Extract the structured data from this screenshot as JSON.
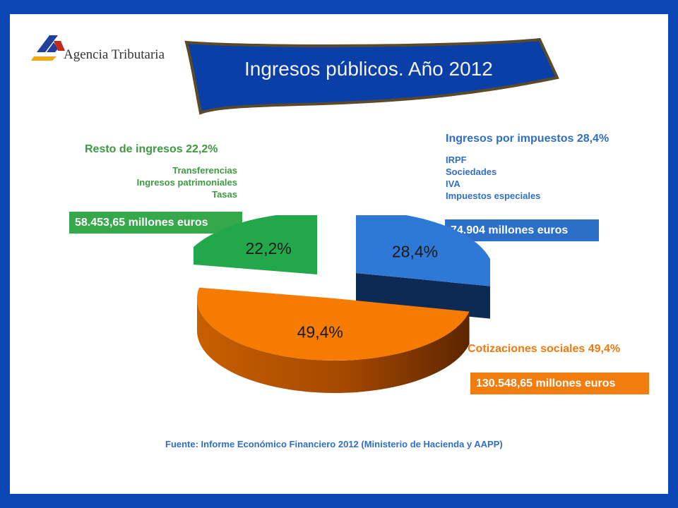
{
  "logo": {
    "text": "Agencia Tributaria"
  },
  "banner": {
    "title": "Ingresos públicos. Año 2012"
  },
  "categories": {
    "resto": {
      "title": "Resto de ingresos 22,2%",
      "items": [
        "Transferencias",
        "Ingresos patrimoniales",
        "Tasas"
      ],
      "amount": "58.453,65 millones euros"
    },
    "impuestos": {
      "title": "Ingresos por impuestos 28,4%",
      "items": [
        "IRPF",
        "Sociedades",
        "IVA",
        "Impuestos especiales"
      ],
      "amount": "74.904 millones euros"
    },
    "cotizaciones": {
      "title": "Cotizaciones sociales 49,4%",
      "amount": "130.548,65 millones euros"
    }
  },
  "source": "Fuente: Informe Económico Financiero 2012 (Ministerio de Hacienda y AAPP)",
  "colors": {
    "impuestos": "#2e78d6",
    "cotizaciones": "#f57c00",
    "resto": "#22a84a",
    "background_frame": "#0a46b4"
  },
  "chart_data": {
    "type": "pie",
    "style": "3d-exploded",
    "title": "Ingresos públicos. Año 2012",
    "categories": [
      "Ingresos por impuestos",
      "Cotizaciones sociales",
      "Resto de ingresos"
    ],
    "values": [
      28.4,
      49.4,
      22.2
    ],
    "amounts": [
      74904,
      130548.65,
      58453.65
    ],
    "unit": "millones euros",
    "labels": [
      "28,4%",
      "49,4%",
      "22,2%"
    ],
    "colors": [
      "#2e78d6",
      "#f57c00",
      "#22a84a"
    ]
  }
}
